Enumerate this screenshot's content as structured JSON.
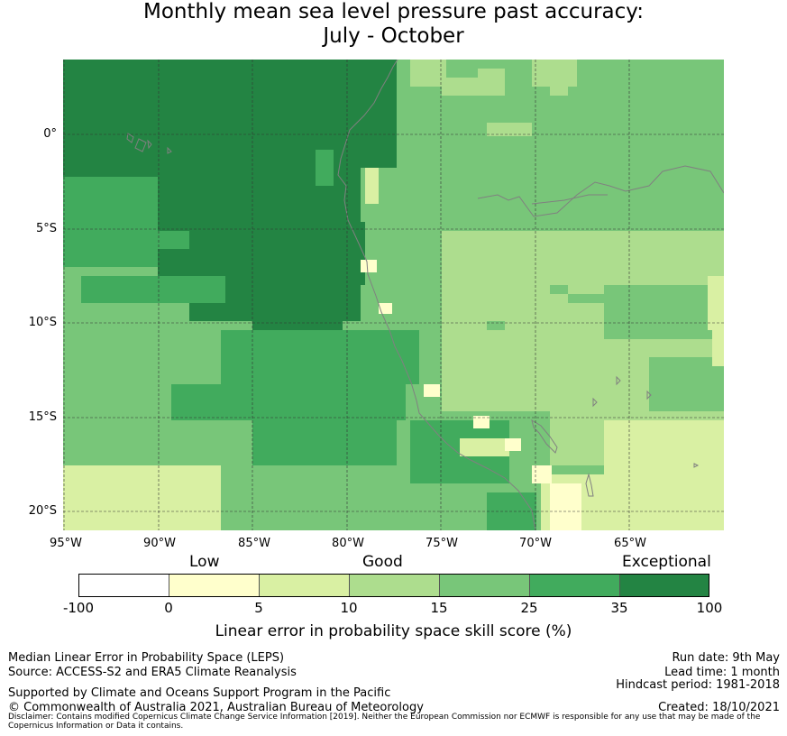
{
  "title": {
    "line1": "Monthly mean sea level pressure past accuracy:",
    "line2": "July - October"
  },
  "map": {
    "lat_ticks": [
      "0°",
      "5°S",
      "10°S",
      "15°S",
      "20°S"
    ],
    "lon_ticks": [
      "95°W",
      "90°W",
      "85°W",
      "80°W",
      "75°W",
      "70°W",
      "65°W"
    ],
    "categories": [
      "Low",
      "Good",
      "Exceptional"
    ],
    "colors": {
      "c0": "#ffffff",
      "c1": "#ffffcc",
      "c2": "#d9f0a3",
      "c3": "#addd8e",
      "c4": "#78c679",
      "c5": "#41ab5d",
      "c6": "#238443",
      "coast": "#808080",
      "grid": "#333333"
    }
  },
  "colorbar": {
    "ticks": [
      "-100",
      "0",
      "5",
      "10",
      "15",
      "25",
      "35",
      "100"
    ],
    "label": "Linear error in probability space skill score (%)"
  },
  "footer": {
    "left": [
      "Median Linear Error in Probability Space (LEPS)",
      "Source: ACCESS-S2 and ERA5 Climate Reanalysis",
      "Supported by Climate and Oceans Support Program in the Pacific",
      "© Commonwealth of Australia 2021, Australian Bureau of Meteorology"
    ],
    "right": [
      "Run date: 9th May",
      "Lead time: 1 month",
      "Hindcast period: 1981-2018",
      "Created: 18/10/2021"
    ],
    "disclaimer": "Disclaimer: Contains modified Copernicus Climate Change Service Information [2019]. Neither the European Commission nor ECMWF is responsible for any use that may be made of the Copernicus Information or Data it contains."
  }
}
